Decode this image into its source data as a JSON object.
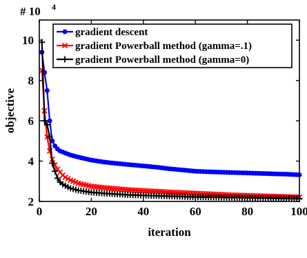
{
  "chart_data": {
    "type": "line",
    "title": "",
    "xlabel": "iteration",
    "ylabel": "objective",
    "y_multiplier": "# 10",
    "y_multiplier_exp": "4",
    "xlim": [
      0,
      100
    ],
    "ylim": [
      2,
      11
    ],
    "xticks": [
      0,
      20,
      40,
      60,
      80,
      100
    ],
    "yticks": [
      2,
      4,
      6,
      8,
      10
    ],
    "grid": false,
    "legend_position": "top-left",
    "series": [
      {
        "name": "gradient descent",
        "color": "#0000ff",
        "marker": "circle",
        "x": [
          1,
          2,
          3,
          4,
          5,
          6,
          7,
          8,
          9,
          10,
          12,
          15,
          20,
          25,
          30,
          35,
          40,
          45,
          50,
          55,
          60,
          65,
          70,
          75,
          80,
          85,
          90,
          95,
          100
        ],
        "y": [
          9.4,
          8.4,
          7.5,
          6.0,
          5.0,
          4.75,
          4.6,
          4.5,
          4.45,
          4.4,
          4.3,
          4.2,
          4.05,
          3.95,
          3.88,
          3.82,
          3.76,
          3.7,
          3.62,
          3.56,
          3.5,
          3.47,
          3.45,
          3.43,
          3.41,
          3.39,
          3.37,
          3.35,
          3.32
        ]
      },
      {
        "name": "gradient Powerball method (gamma=.1)",
        "color": "#ff0000",
        "marker": "x",
        "x": [
          1,
          2,
          3,
          4,
          5,
          6,
          7,
          8,
          9,
          10,
          12,
          15,
          20,
          25,
          30,
          35,
          40,
          45,
          50,
          55,
          60,
          65,
          70,
          75,
          80,
          85,
          90,
          95,
          100
        ],
        "y": [
          8.5,
          6.5,
          5.2,
          4.5,
          4.1,
          3.8,
          3.6,
          3.45,
          3.3,
          3.2,
          3.05,
          2.9,
          2.75,
          2.68,
          2.62,
          2.57,
          2.53,
          2.5,
          2.46,
          2.43,
          2.4,
          2.37,
          2.34,
          2.31,
          2.29,
          2.27,
          2.25,
          2.23,
          2.21
        ]
      },
      {
        "name": "gradient Powerball method (gamma=0)",
        "color": "#000000",
        "marker": "plus",
        "x": [
          1,
          2,
          3,
          4,
          5,
          6,
          7,
          8,
          9,
          10,
          12,
          15,
          20,
          25,
          30,
          35,
          40,
          45,
          50,
          55,
          60,
          65,
          70,
          75,
          80,
          85,
          90,
          95,
          100
        ],
        "y": [
          9.9,
          6.0,
          5.8,
          5.2,
          3.9,
          3.5,
          3.15,
          2.95,
          2.85,
          2.78,
          2.65,
          2.55,
          2.45,
          2.4,
          2.36,
          2.32,
          2.3,
          2.28,
          2.26,
          2.24,
          2.22,
          2.21,
          2.2,
          2.19,
          2.18,
          2.17,
          2.16,
          2.15,
          2.14
        ]
      }
    ]
  }
}
